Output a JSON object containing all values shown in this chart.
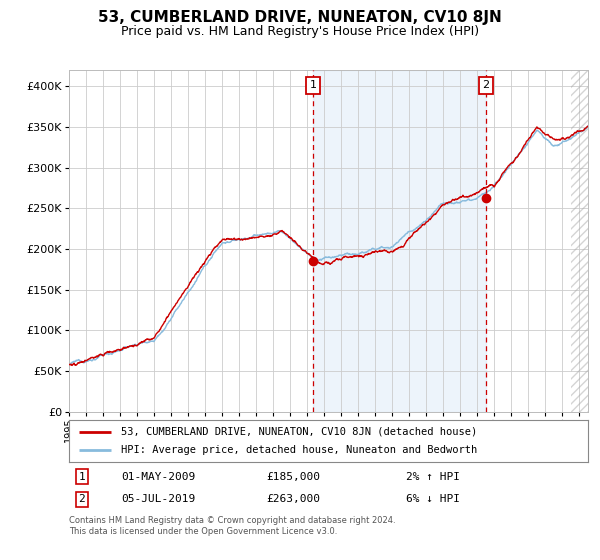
{
  "title": "53, CUMBERLAND DRIVE, NUNEATON, CV10 8JN",
  "subtitle": "Price paid vs. HM Land Registry's House Price Index (HPI)",
  "title_fontsize": 11,
  "subtitle_fontsize": 9,
  "background_color": "#ffffff",
  "plot_bg_color": "#ffffff",
  "grid_color": "#cccccc",
  "hpi_line_color": "#88bbdd",
  "price_line_color": "#cc0000",
  "marker_color": "#cc0000",
  "shade_color": "#cce0f5",
  "vline_color": "#cc0000",
  "ylim": [
    0,
    420000
  ],
  "xlim_start": 1995,
  "xlim_end": 2025.5,
  "ytick_step": 50000,
  "legend_items": [
    "53, CUMBERLAND DRIVE, NUNEATON, CV10 8JN (detached house)",
    "HPI: Average price, detached house, Nuneaton and Bedworth"
  ],
  "annotation1_date": "01-MAY-2009",
  "annotation1_price": "£185,000",
  "annotation1_hpi": "2% ↑ HPI",
  "annotation2_date": "05-JUL-2019",
  "annotation2_price": "£263,000",
  "annotation2_hpi": "6% ↓ HPI",
  "footer": "Contains HM Land Registry data © Crown copyright and database right 2024.\nThis data is licensed under the Open Government Licence v3.0.",
  "sale1_x": 2009.33,
  "sale1_y": 185000,
  "sale2_x": 2019.5,
  "sale2_y": 263000,
  "shade_x_start": 2009.33,
  "shade_x_end": 2019.5
}
